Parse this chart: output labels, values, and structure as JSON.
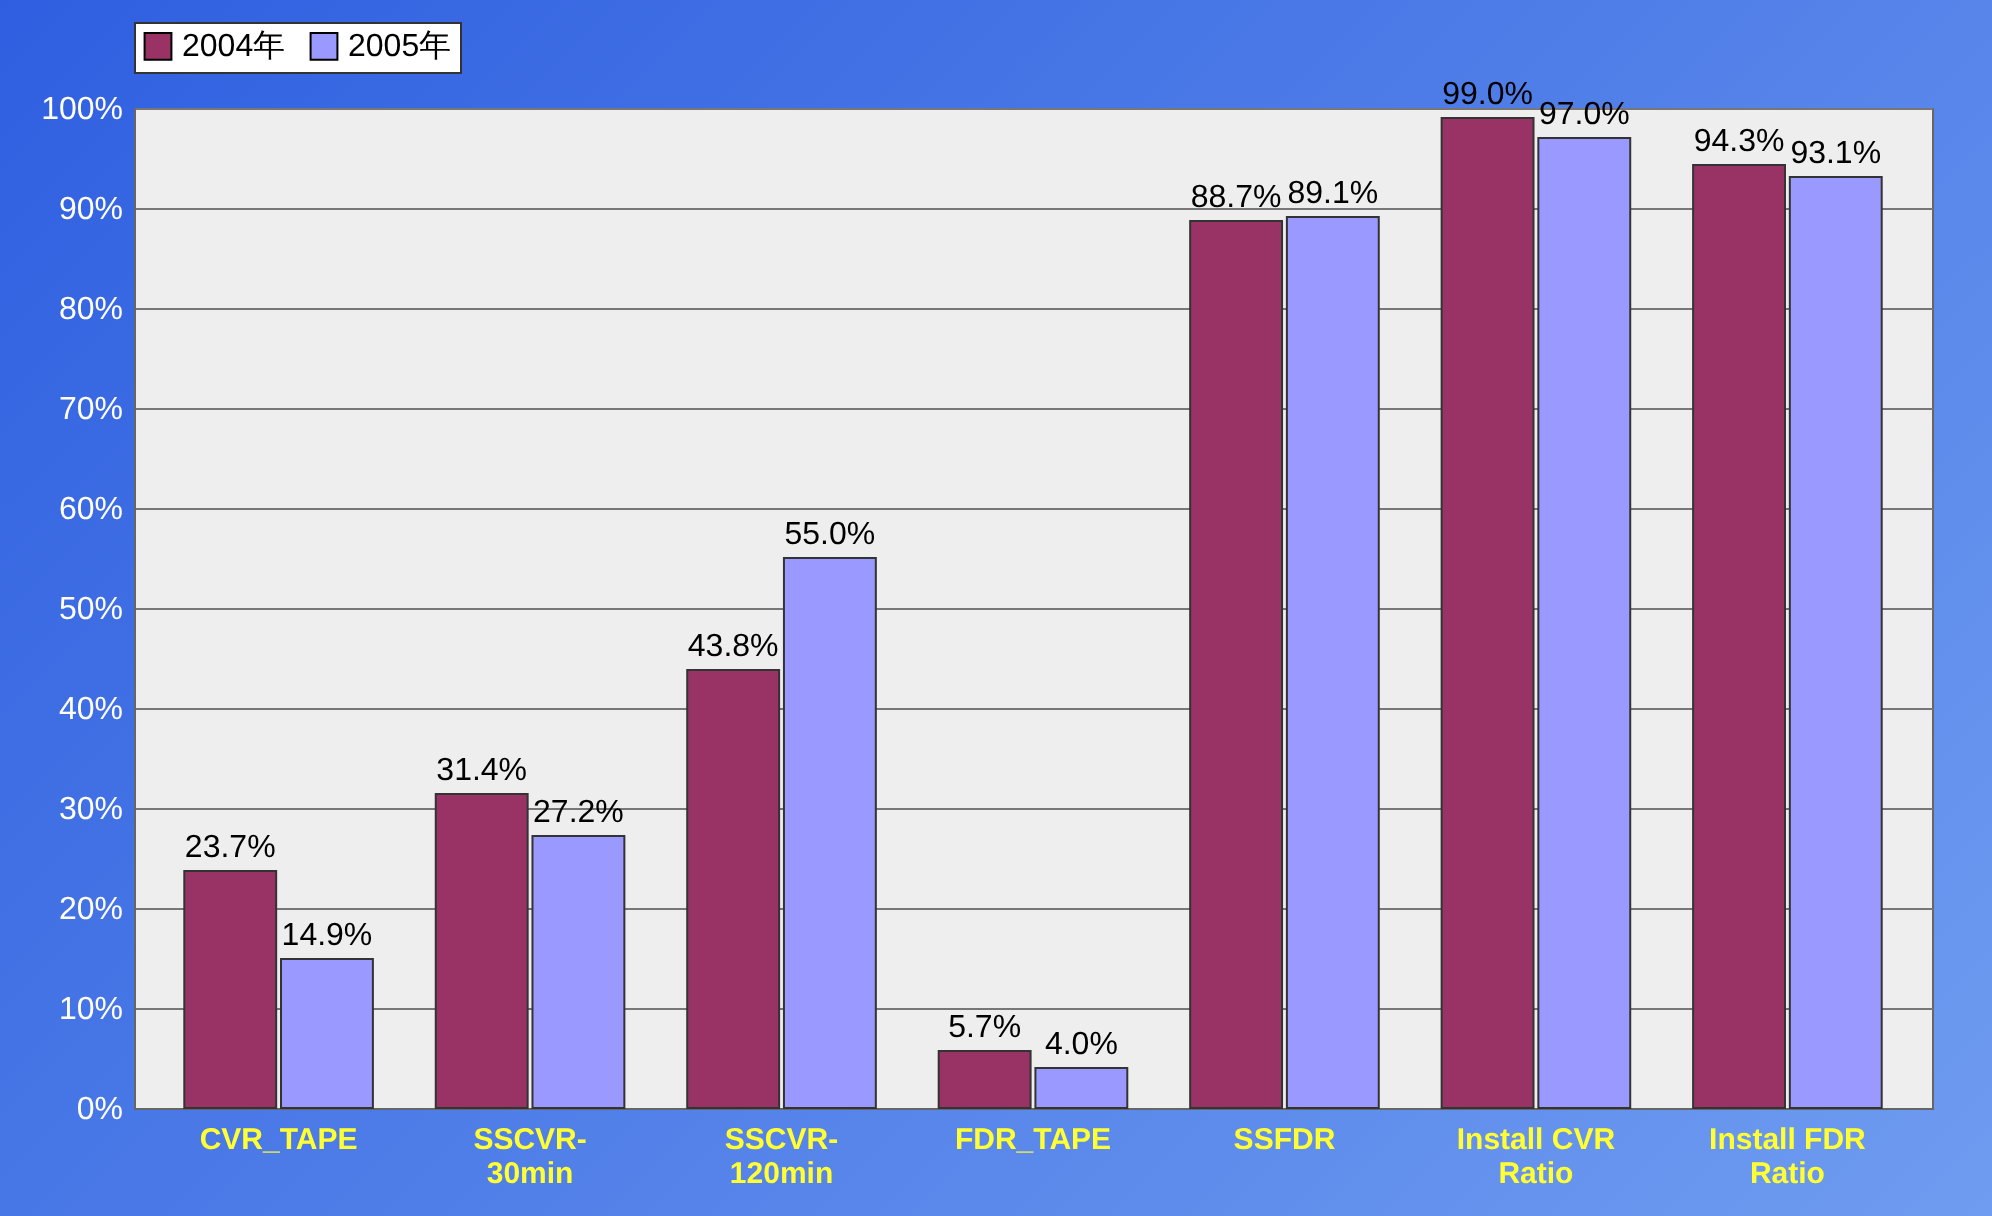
{
  "chart_data": {
    "type": "bar",
    "categories": [
      "CVR_TAPE",
      "SSCVR-30min",
      "SSCVR-120min",
      "FDR_TAPE",
      "SSFDR",
      "Install CVR Ratio",
      "Install FDR Ratio"
    ],
    "series": [
      {
        "name": "2004年",
        "color": "#993366",
        "values": [
          23.7,
          31.4,
          43.8,
          5.7,
          88.7,
          99.0,
          94.3
        ],
        "value_labels": [
          "23.7%",
          "31.4%",
          "43.8%",
          "5.7%",
          "88.7%",
          "99.0%",
          "94.3%"
        ]
      },
      {
        "name": "2005年",
        "color": "#9999ff",
        "values": [
          14.9,
          27.2,
          55.0,
          4.0,
          89.1,
          97.0,
          93.1
        ],
        "value_labels": [
          "14.9%",
          "27.2%",
          "55.0%",
          "4.0%",
          "89.1%",
          "97.0%",
          "93.1%"
        ]
      }
    ],
    "ylim": [
      0,
      100
    ],
    "yticks": [
      {
        "value": 0,
        "label": "0%"
      },
      {
        "value": 10,
        "label": "10%"
      },
      {
        "value": 20,
        "label": "20%"
      },
      {
        "value": 30,
        "label": "30%"
      },
      {
        "value": 40,
        "label": "40%"
      },
      {
        "value": 50,
        "label": "50%"
      },
      {
        "value": 60,
        "label": "60%"
      },
      {
        "value": 70,
        "label": "70%"
      },
      {
        "value": 80,
        "label": "80%"
      },
      {
        "value": 90,
        "label": "90%"
      },
      {
        "value": 100,
        "label": "100%"
      }
    ],
    "grid": "y",
    "legend": "top"
  }
}
